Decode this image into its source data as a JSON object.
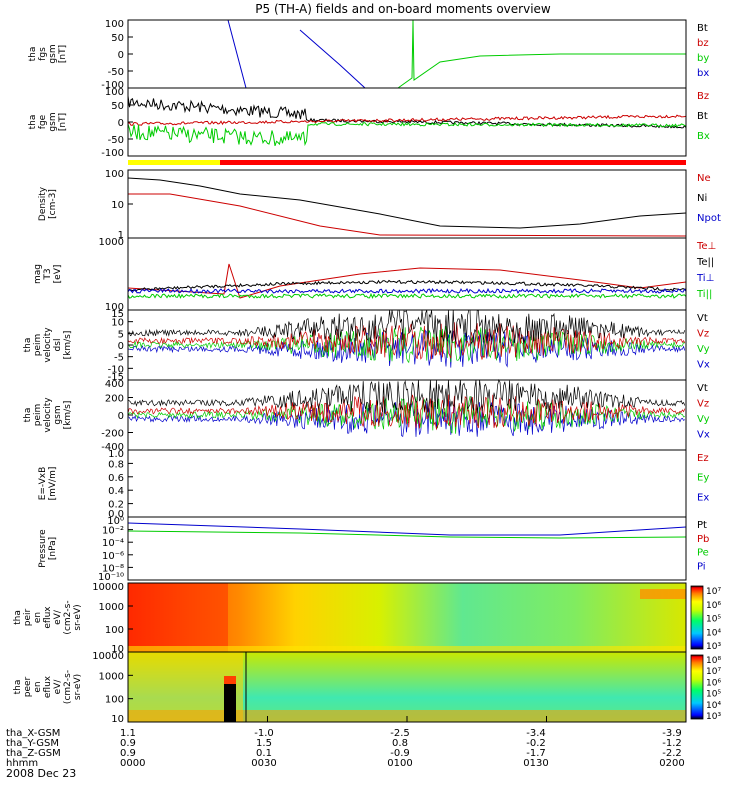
{
  "title": "P5 (TH-A) fields and on-board moments overview",
  "date_label": "2008 Dec 23",
  "chart_data": [
    {
      "type": "line",
      "panel": "fgs-gsm",
      "ylabel": [
        "tha",
        "fgs",
        "gsm",
        "[nT]"
      ],
      "ylim": [
        -100,
        100
      ],
      "yticks": [
        "100",
        "50",
        "0",
        "-50",
        "-100"
      ],
      "legend": [
        {
          "name": "Bt",
          "color": "#000000"
        },
        {
          "name": "bz",
          "color": "#cc0000"
        },
        {
          "name": "by",
          "color": "#00cc00"
        },
        {
          "name": "bx",
          "color": "#0000cc"
        }
      ]
    },
    {
      "type": "line",
      "panel": "fge-gsm",
      "ylabel": [
        "tha",
        "fge",
        "gsm",
        "[nT]"
      ],
      "ylim": [
        -100,
        100
      ],
      "yticks": [
        "100",
        "50",
        "0",
        "-50",
        "-100"
      ],
      "legend": [
        {
          "name": "Bz",
          "color": "#cc0000"
        },
        {
          "name": "Bt",
          "color": "#000000"
        },
        {
          "name": "Bx",
          "color": "#00cc00"
        }
      ]
    },
    {
      "type": "line",
      "panel": "density",
      "ylabel": [
        "Density",
        "[cm-3]"
      ],
      "yscale": "log",
      "yticks": [
        "100",
        "10",
        "1"
      ],
      "legend": [
        {
          "name": "Ne",
          "color": "#cc0000"
        },
        {
          "name": "Ni",
          "color": "#000000"
        },
        {
          "name": "Npot",
          "color": "#0000cc"
        }
      ]
    },
    {
      "type": "line",
      "panel": "temperature",
      "ylabel": [
        "mag",
        "T3",
        "[eV]"
      ],
      "yscale": "log",
      "yticks": [
        "1000",
        "100"
      ],
      "legend": [
        {
          "name": "Te⊥",
          "color": "#cc0000"
        },
        {
          "name": "Te||",
          "color": "#000000"
        },
        {
          "name": "Ti⊥",
          "color": "#0000cc"
        },
        {
          "name": "Ti||",
          "color": "#00cc00"
        }
      ]
    },
    {
      "type": "line",
      "panel": "peim-velocity-dsl",
      "ylabel": [
        "tha",
        "peim",
        "velocity",
        "dsl",
        "[km/s]"
      ],
      "ylim": [
        -15,
        15
      ],
      "yticks": [
        "15",
        "10",
        "5",
        "0",
        "-5",
        "-10",
        "-15"
      ],
      "legend": [
        {
          "name": "Vt",
          "color": "#000000"
        },
        {
          "name": "Vz",
          "color": "#cc0000"
        },
        {
          "name": "Vy",
          "color": "#00cc00"
        },
        {
          "name": "Vx",
          "color": "#0000cc"
        }
      ]
    },
    {
      "type": "line",
      "panel": "peim-velocity-gsm",
      "ylabel": [
        "tha",
        "peim",
        "velocity",
        "gsm",
        "[km/s]"
      ],
      "ylim": [
        -400,
        400
      ],
      "yticks": [
        "400",
        "200",
        "0",
        "-200",
        "-400"
      ],
      "legend": [
        {
          "name": "Vt",
          "color": "#000000"
        },
        {
          "name": "Vz",
          "color": "#cc0000"
        },
        {
          "name": "Vy",
          "color": "#00cc00"
        },
        {
          "name": "Vx",
          "color": "#0000cc"
        }
      ]
    },
    {
      "type": "line",
      "panel": "e-field",
      "ylabel": [
        "E=-VxB",
        "[mV/m]"
      ],
      "ylim": [
        0.0,
        1.0
      ],
      "yticks": [
        "1.0",
        "0.8",
        "0.6",
        "0.4",
        "0.2",
        "0.0"
      ],
      "legend": [
        {
          "name": "Ez",
          "color": "#cc0000"
        },
        {
          "name": "Ey",
          "color": "#00cc00"
        },
        {
          "name": "Ex",
          "color": "#0000cc"
        }
      ]
    },
    {
      "type": "line",
      "panel": "pressure",
      "ylabel": [
        "Pressure",
        "[nPa]"
      ],
      "yscale": "log",
      "yticks": [
        "10⁰",
        "10⁻²",
        "10⁻⁴",
        "10⁻⁶",
        "10⁻⁸",
        "10⁻¹⁰"
      ],
      "legend": [
        {
          "name": "Pt",
          "color": "#000000"
        },
        {
          "name": "Pb",
          "color": "#cc0000"
        },
        {
          "name": "Pe",
          "color": "#00cc00"
        },
        {
          "name": "Pi",
          "color": "#0000cc"
        }
      ]
    },
    {
      "type": "heatmap",
      "panel": "peir-energy",
      "ylabel": [
        "tha",
        "peir",
        "en",
        "eflux",
        "eV/",
        "(cm2-s-",
        "sr-eV)"
      ],
      "yscale": "log",
      "yticks": [
        "10000",
        "1000",
        "100",
        "10"
      ],
      "colorbar_ticks": [
        "10⁷",
        "10⁶",
        "10⁵",
        "10⁴",
        "10³"
      ]
    },
    {
      "type": "heatmap",
      "panel": "peer-energy",
      "ylabel": [
        "tha",
        "peer",
        "en",
        "eflux",
        "eV/",
        "(cm2-s-",
        "sr-eV)"
      ],
      "yscale": "log",
      "yticks": [
        "10000",
        "1000",
        "100",
        "10"
      ],
      "colorbar_ticks": [
        "10⁸",
        "10⁷",
        "10⁶",
        "10⁵",
        "10⁴",
        "10³"
      ]
    }
  ],
  "x_axis": {
    "row_labels": [
      "tha_X-GSM",
      "tha_Y-GSM",
      "tha_Z-GSM",
      "hhmm"
    ],
    "columns": [
      {
        "x": "1.1",
        "y": "0.9",
        "z": "0.9",
        "t": "0000"
      },
      {
        "x": "-1.0",
        "y": "1.5",
        "z": "0.1",
        "t": "0030"
      },
      {
        "x": "-2.5",
        "y": "0.8",
        "z": "-0.9",
        "t": "0100"
      },
      {
        "x": "-3.4",
        "y": "-0.2",
        "z": "-1.7",
        "t": "0130"
      },
      {
        "x": "-3.9",
        "y": "-1.2",
        "z": "-2.2",
        "t": "0200"
      }
    ]
  }
}
